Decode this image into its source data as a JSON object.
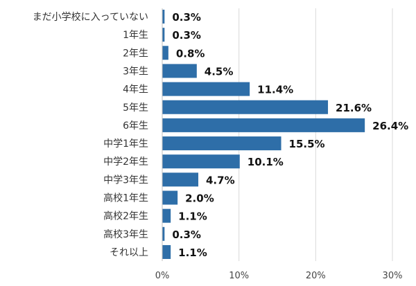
{
  "chart_data": {
    "type": "bar",
    "orientation": "horizontal",
    "categories": [
      "まだ小学校に入っていない",
      "1年生",
      "2年生",
      "3年生",
      "4年生",
      "5年生",
      "6年生",
      "中学1年生",
      "中学2年生",
      "中学3年生",
      "高校1年生",
      "高校2年生",
      "高校3年生",
      "それ以上"
    ],
    "values": [
      0.3,
      0.3,
      0.8,
      4.5,
      11.4,
      21.6,
      26.4,
      15.5,
      10.1,
      4.7,
      2.0,
      1.1,
      0.3,
      1.1
    ],
    "value_labels": [
      "0.3%",
      "0.3%",
      "0.8%",
      "4.5%",
      "11.4%",
      "21.6%",
      "26.4%",
      "15.5%",
      "10.1%",
      "4.7%",
      "2.0%",
      "1.1%",
      "0.3%",
      "1.1%"
    ],
    "xlim": [
      0,
      30
    ],
    "xticks": [
      0,
      10,
      20,
      30
    ],
    "xtick_labels": [
      "0%",
      "10%",
      "20%",
      "30%"
    ],
    "grid": true,
    "bar_color": "#2e6ea8",
    "grid_color": "#d9d9d9"
  }
}
